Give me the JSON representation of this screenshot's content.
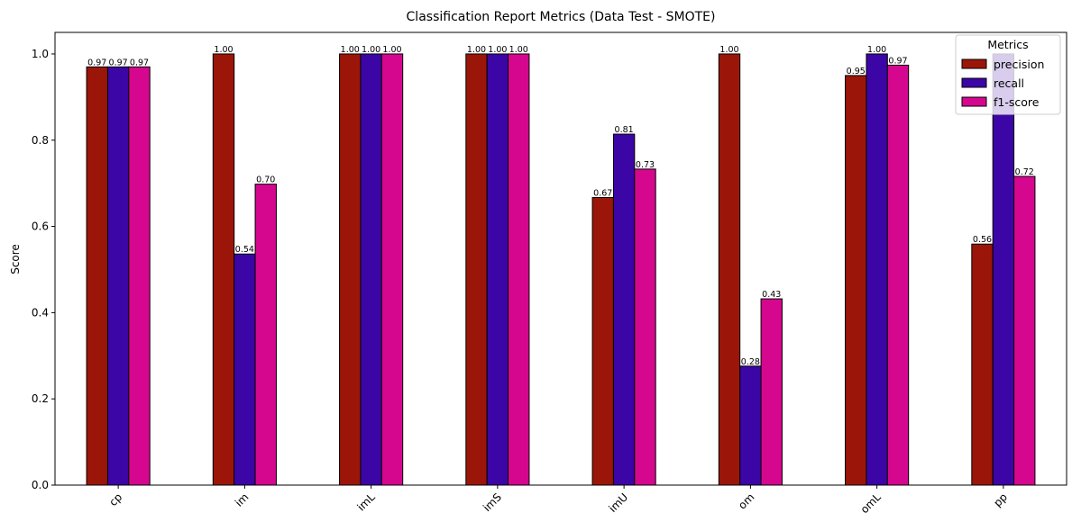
{
  "chart_data": {
    "type": "bar",
    "title": "Classification Report Metrics (Data Test - SMOTE)",
    "xlabel": "",
    "ylabel": "Score",
    "ylim": [
      0,
      1.05
    ],
    "yticks": [
      0.0,
      0.2,
      0.4,
      0.6,
      0.8,
      1.0
    ],
    "ytick_labels": [
      "0.0",
      "0.2",
      "0.4",
      "0.6",
      "0.8",
      "1.0"
    ],
    "categories": [
      "cp",
      "im",
      "imL",
      "imS",
      "imU",
      "om",
      "omL",
      "pp"
    ],
    "series": [
      {
        "name": "precision",
        "color": "#9b1608",
        "values": [
          0.97,
          1.0,
          1.0,
          1.0,
          0.667,
          1.0,
          0.95,
          0.559
        ]
      },
      {
        "name": "recall",
        "color": "#3c05a6",
        "values": [
          0.97,
          0.536,
          1.0,
          1.0,
          0.814,
          0.276,
          1.0,
          1.0
        ]
      },
      {
        "name": "f1-score",
        "color": "#d6078f",
        "values": [
          0.97,
          0.698,
          1.0,
          1.0,
          0.733,
          0.432,
          0.974,
          0.716
        ]
      }
    ],
    "data_labels": [
      [
        "0.97",
        "1.00",
        "1.00",
        "1.00",
        "0.67",
        "1.00",
        "0.95",
        "0.56"
      ],
      [
        "0.97",
        "0.54",
        "1.00",
        "1.00",
        "0.81",
        "0.28",
        "1.00",
        ""
      ],
      [
        "0.97",
        "0.70",
        "1.00",
        "1.00",
        "0.73",
        "0.43",
        "0.97",
        "0.72"
      ]
    ],
    "legend": {
      "title": "Metrics",
      "position": "top-right"
    },
    "grid": false,
    "xtick_rotation": 45
  }
}
